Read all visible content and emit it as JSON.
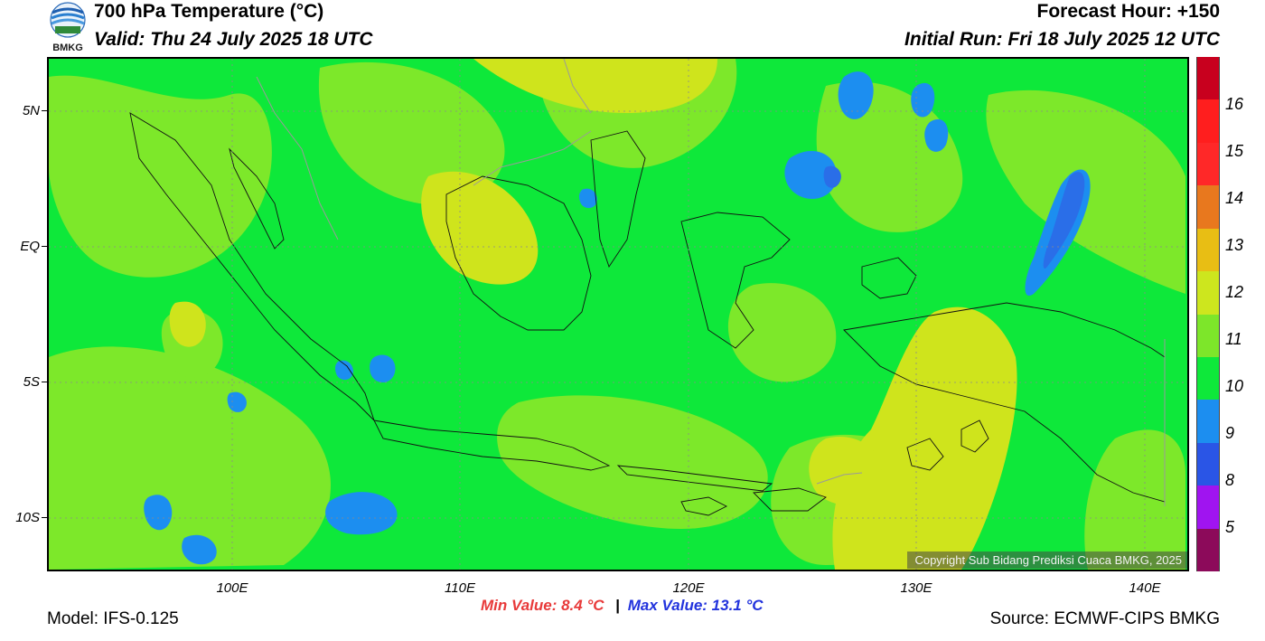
{
  "header": {
    "title": "700 hPa Temperature (°C)",
    "valid": "Valid: Thu 24 July 2025 18 UTC",
    "forecast_hour": "Forecast Hour: +150",
    "initial_run": "Initial Run: Fri 18 July 2025 12 UTC",
    "logo_text": "BMKG"
  },
  "map": {
    "lat_labels": [
      "5N",
      "EQ",
      "5S",
      "10S"
    ],
    "lon_labels": [
      "100E",
      "110E",
      "120E",
      "130E",
      "140E"
    ],
    "copyright": "Copyright Sub Bidang Prediksi Cuaca BMKG, 2025",
    "colors": {
      "bg_green": "#0ee83a",
      "light_green": "#7de82a",
      "yellow_green": "#cfe41c",
      "cyan_blue": "#1c8ef0",
      "blue": "#2a6ee8"
    }
  },
  "colorbar": {
    "labels": [
      "16",
      "15",
      "14",
      "13",
      "12",
      "11",
      "10",
      "9",
      "8",
      "5"
    ],
    "colors": [
      "#c8001e",
      "#ff1e1e",
      "#ff2828",
      "#e8781e",
      "#e8be14",
      "#cde61e",
      "#7de62a",
      "#0ee83a",
      "#1c8ef0",
      "#2a55e6",
      "#a014f0",
      "#8c0a5a"
    ]
  },
  "footer": {
    "min_value": "Min Value: 8.4 °C",
    "separator": "|",
    "max_value": "Max Value: 13.1 °C",
    "model": "Model: IFS-0.125",
    "source": "Source: ECMWF-CIPS BMKG"
  }
}
